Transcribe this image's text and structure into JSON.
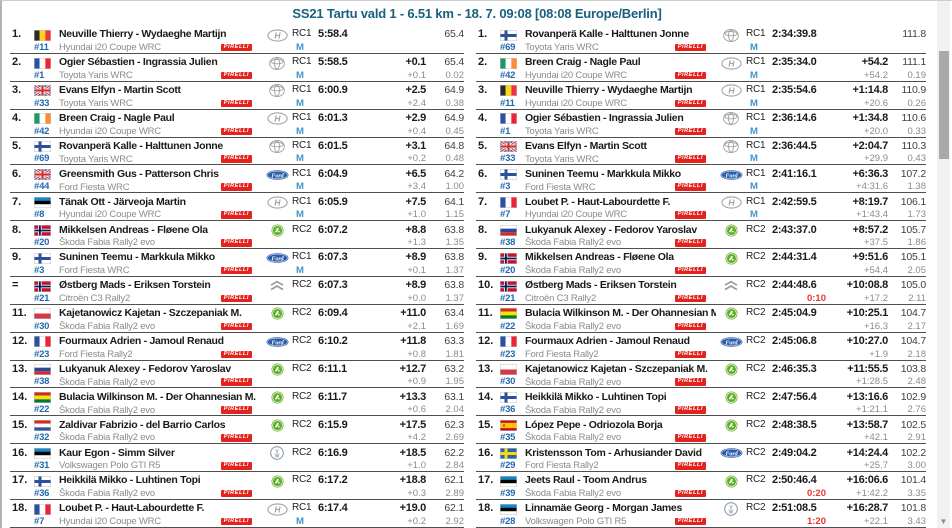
{
  "header": {
    "title": "SS21 Tartu vald 1 - 6.51 km - 18. 7. 09:08 [08:08 Europe/Berlin]"
  },
  "colors": {
    "accent": "#17617f",
    "car_number_blue": "#2268ae",
    "tyre_blue": "#3f93c9",
    "penalty_red": "#e23b2e",
    "pirelli_red": "#e3231c",
    "separator_grey": "#4f4f4f"
  },
  "tyre_brand": "PIRELLI",
  "icons": {
    "scroll_down": "▼"
  },
  "stage_results": [
    {
      "pos": "1.",
      "country": "belgium",
      "crew": "Neuville Thierry - Wydaeghe Martijn",
      "car_no": "#11",
      "car": "Hyundai i20 Coupe WRC",
      "make_icon": "hyundai-logo",
      "class": "RC1",
      "tyre": "M",
      "time": "5:58.4",
      "penalty": "",
      "gap": "",
      "gap_prev": "",
      "speed": "65.4",
      "speed_diff": ""
    },
    {
      "pos": "2.",
      "country": "france",
      "crew": "Ogier Sébastien - Ingrassia Julien",
      "car_no": "#1",
      "car": "Toyota Yaris WRC",
      "make_icon": "toyota-logo",
      "class": "RC1",
      "tyre": "M",
      "time": "5:58.5",
      "penalty": "",
      "gap": "+0.1",
      "gap_prev": "+0.1",
      "speed": "65.4",
      "speed_diff": "0.02"
    },
    {
      "pos": "3.",
      "country": "great-britain",
      "crew": "Evans Elfyn - Martin Scott",
      "car_no": "#33",
      "car": "Toyota Yaris WRC",
      "make_icon": "toyota-logo",
      "class": "RC1",
      "tyre": "M",
      "time": "6:00.9",
      "penalty": "",
      "gap": "+2.5",
      "gap_prev": "+2.4",
      "speed": "64.9",
      "speed_diff": "0.38"
    },
    {
      "pos": "4.",
      "country": "ireland",
      "crew": "Breen Craig - Nagle Paul",
      "car_no": "#42",
      "car": "Hyundai i20 Coupe WRC",
      "make_icon": "hyundai-logo",
      "class": "RC1",
      "tyre": "M",
      "time": "6:01.3",
      "penalty": "",
      "gap": "+2.9",
      "gap_prev": "+0.4",
      "speed": "64.9",
      "speed_diff": "0.45"
    },
    {
      "pos": "5.",
      "country": "finland",
      "crew": "Rovanperä Kalle - Halttunen Jonne",
      "car_no": "#69",
      "car": "Toyota Yaris WRC",
      "make_icon": "toyota-logo",
      "class": "RC1",
      "tyre": "M",
      "time": "6:01.5",
      "penalty": "",
      "gap": "+3.1",
      "gap_prev": "+0.2",
      "speed": "64.8",
      "speed_diff": "0.48"
    },
    {
      "pos": "6.",
      "country": "great-britain",
      "crew": "Greensmith Gus - Patterson Chris",
      "car_no": "#44",
      "car": "Ford Fiesta WRC",
      "make_icon": "ford-logo",
      "class": "RC1",
      "tyre": "M",
      "time": "6:04.9",
      "penalty": "",
      "gap": "+6.5",
      "gap_prev": "+3.4",
      "speed": "64.2",
      "speed_diff": "1.00"
    },
    {
      "pos": "7.",
      "country": "estonia",
      "crew": "Tänak Ott - Järveoja Martin",
      "car_no": "#8",
      "car": "Hyundai i20 Coupe WRC",
      "make_icon": "hyundai-logo",
      "class": "RC1",
      "tyre": "M",
      "time": "6:05.9",
      "penalty": "",
      "gap": "+7.5",
      "gap_prev": "+1.0",
      "speed": "64.1",
      "speed_diff": "1.15"
    },
    {
      "pos": "8.",
      "country": "norway",
      "crew": "Mikkelsen Andreas - Fløene Ola",
      "car_no": "#20",
      "car": "Škoda Fabia Rally2 evo",
      "make_icon": "skoda-logo",
      "class": "RC2",
      "tyre": "",
      "time": "6:07.2",
      "penalty": "",
      "gap": "+8.8",
      "gap_prev": "+1.3",
      "speed": "63.8",
      "speed_diff": "1.35"
    },
    {
      "pos": "9.",
      "country": "finland",
      "crew": "Suninen Teemu - Markkula Mikko",
      "car_no": "#3",
      "car": "Ford Fiesta WRC",
      "make_icon": "ford-logo",
      "class": "RC1",
      "tyre": "M",
      "time": "6:07.3",
      "penalty": "",
      "gap": "+8.9",
      "gap_prev": "+0.1",
      "speed": "63.8",
      "speed_diff": "1.37"
    },
    {
      "pos": "=",
      "country": "norway",
      "crew": "Østberg Mads - Eriksen Torstein",
      "car_no": "#21",
      "car": "Citroën C3 Rally2",
      "make_icon": "citroen-logo",
      "class": "RC2",
      "tyre": "",
      "time": "6:07.3",
      "penalty": "",
      "gap": "+8.9",
      "gap_prev": "+0.0",
      "speed": "63.8",
      "speed_diff": "1.37"
    },
    {
      "pos": "11.",
      "country": "poland",
      "crew": "Kajetanowicz Kajetan - Szczepaniak M.",
      "car_no": "#30",
      "car": "Škoda Fabia Rally2 evo",
      "make_icon": "skoda-logo",
      "class": "RC2",
      "tyre": "",
      "time": "6:09.4",
      "penalty": "",
      "gap": "+11.0",
      "gap_prev": "+2.1",
      "speed": "63.4",
      "speed_diff": "1.69"
    },
    {
      "pos": "12.",
      "country": "france",
      "crew": "Fourmaux Adrien - Jamoul Renaud",
      "car_no": "#23",
      "car": "Ford Fiesta Rally2",
      "make_icon": "ford-logo",
      "class": "RC2",
      "tyre": "",
      "time": "6:10.2",
      "penalty": "",
      "gap": "+11.8",
      "gap_prev": "+0.8",
      "speed": "63.3",
      "speed_diff": "1.81"
    },
    {
      "pos": "13.",
      "country": "russia",
      "crew": "Lukyanuk Alexey - Fedorov Yaroslav",
      "car_no": "#38",
      "car": "Škoda Fabia Rally2 evo",
      "make_icon": "skoda-logo",
      "class": "RC2",
      "tyre": "",
      "time": "6:11.1",
      "penalty": "",
      "gap": "+12.7",
      "gap_prev": "+0.9",
      "speed": "63.2",
      "speed_diff": "1.95"
    },
    {
      "pos": "14.",
      "country": "bolivia",
      "crew": "Bulacia Wilkinson M. - Der Ohannesian M.",
      "car_no": "#22",
      "car": "Škoda Fabia Rally2 evo",
      "make_icon": "skoda-logo",
      "class": "RC2",
      "tyre": "",
      "time": "6:11.7",
      "penalty": "",
      "gap": "+13.3",
      "gap_prev": "+0.6",
      "speed": "63.1",
      "speed_diff": "2.04"
    },
    {
      "pos": "15.",
      "country": "paraguay",
      "crew": "Zaldivar Fabrizio - del Barrio Carlos",
      "car_no": "#32",
      "car": "Škoda Fabia Rally2 evo",
      "make_icon": "skoda-logo",
      "class": "RC2",
      "tyre": "",
      "time": "6:15.9",
      "penalty": "",
      "gap": "+17.5",
      "gap_prev": "+4.2",
      "speed": "62.3",
      "speed_diff": "2.69"
    },
    {
      "pos": "16.",
      "country": "estonia",
      "crew": "Kaur Egon - Simm Silver",
      "car_no": "#31",
      "car": "Volkswagen Polo GTI R5",
      "make_icon": "volkswagen-logo",
      "class": "RC2",
      "tyre": "",
      "time": "6:16.9",
      "penalty": "",
      "gap": "+18.5",
      "gap_prev": "+1.0",
      "speed": "62.2",
      "speed_diff": "2.84"
    },
    {
      "pos": "17.",
      "country": "finland",
      "crew": "Heikkilä Mikko - Luhtinen Topi",
      "car_no": "#36",
      "car": "Škoda Fabia Rally2 evo",
      "make_icon": "skoda-logo",
      "class": "RC2",
      "tyre": "",
      "time": "6:17.2",
      "penalty": "",
      "gap": "+18.8",
      "gap_prev": "+0.3",
      "speed": "62.1",
      "speed_diff": "2.89"
    },
    {
      "pos": "18.",
      "country": "france",
      "crew": "Loubet P. - Haut-Labourdette F.",
      "car_no": "#7",
      "car": "Hyundai i20 Coupe WRC",
      "make_icon": "hyundai-logo",
      "class": "RC1",
      "tyre": "M",
      "time": "6:17.4",
      "penalty": "",
      "gap": "+19.0",
      "gap_prev": "+0.2",
      "speed": "62.1",
      "speed_diff": "2.92"
    }
  ],
  "overall_results": [
    {
      "pos": "1.",
      "country": "finland",
      "crew": "Rovanperä Kalle - Halttunen Jonne",
      "car_no": "#69",
      "car": "Toyota Yaris WRC",
      "make_icon": "toyota-logo",
      "class": "RC1",
      "tyre": "M",
      "time": "2:34:39.8",
      "penalty": "",
      "gap": "",
      "gap_prev": "",
      "speed": "111.8",
      "speed_diff": ""
    },
    {
      "pos": "2.",
      "country": "ireland",
      "crew": "Breen Craig - Nagle Paul",
      "car_no": "#42",
      "car": "Hyundai i20 Coupe WRC",
      "make_icon": "hyundai-logo",
      "class": "RC1",
      "tyre": "M",
      "time": "2:35:34.0",
      "penalty": "",
      "gap": "+54.2",
      "gap_prev": "+54.2",
      "speed": "111.1",
      "speed_diff": "0.19"
    },
    {
      "pos": "3.",
      "country": "belgium",
      "crew": "Neuville Thierry - Wydaeghe Martijn",
      "car_no": "#11",
      "car": "Hyundai i20 Coupe WRC",
      "make_icon": "hyundai-logo",
      "class": "RC1",
      "tyre": "M",
      "time": "2:35:54.6",
      "penalty": "",
      "gap": "+1:14.8",
      "gap_prev": "+20.6",
      "speed": "110.9",
      "speed_diff": "0.26"
    },
    {
      "pos": "4.",
      "country": "france",
      "crew": "Ogier Sébastien - Ingrassia Julien",
      "car_no": "#1",
      "car": "Toyota Yaris WRC",
      "make_icon": "toyota-logo",
      "class": "RC1",
      "tyre": "M",
      "time": "2:36:14.6",
      "penalty": "",
      "gap": "+1:34.8",
      "gap_prev": "+20.0",
      "speed": "110.6",
      "speed_diff": "0.33"
    },
    {
      "pos": "5.",
      "country": "great-britain",
      "crew": "Evans Elfyn - Martin Scott",
      "car_no": "#33",
      "car": "Toyota Yaris WRC",
      "make_icon": "toyota-logo",
      "class": "RC1",
      "tyre": "M",
      "time": "2:36:44.5",
      "penalty": "",
      "gap": "+2:04.7",
      "gap_prev": "+29.9",
      "speed": "110.3",
      "speed_diff": "0.43"
    },
    {
      "pos": "6.",
      "country": "finland",
      "crew": "Suninen Teemu - Markkula Mikko",
      "car_no": "#3",
      "car": "Ford Fiesta WRC",
      "make_icon": "ford-logo",
      "class": "RC1",
      "tyre": "M",
      "time": "2:41:16.1",
      "penalty": "",
      "gap": "+6:36.3",
      "gap_prev": "+4:31.6",
      "speed": "107.2",
      "speed_diff": "1.38"
    },
    {
      "pos": "7.",
      "country": "france",
      "crew": "Loubet P. - Haut-Labourdette F.",
      "car_no": "#7",
      "car": "Hyundai i20 Coupe WRC",
      "make_icon": "hyundai-logo",
      "class": "RC1",
      "tyre": "M",
      "time": "2:42:59.5",
      "penalty": "",
      "gap": "+8:19.7",
      "gap_prev": "+1:43.4",
      "speed": "106.1",
      "speed_diff": "1.73"
    },
    {
      "pos": "8.",
      "country": "russia",
      "crew": "Lukyanuk Alexey - Fedorov Yaroslav",
      "car_no": "#38",
      "car": "Škoda Fabia Rally2 evo",
      "make_icon": "skoda-logo",
      "class": "RC2",
      "tyre": "",
      "time": "2:43:37.0",
      "penalty": "",
      "gap": "+8:57.2",
      "gap_prev": "+37.5",
      "speed": "105.7",
      "speed_diff": "1.86"
    },
    {
      "pos": "9.",
      "country": "norway",
      "crew": "Mikkelsen Andreas - Fløene Ola",
      "car_no": "#20",
      "car": "Škoda Fabia Rally2 evo",
      "make_icon": "skoda-logo",
      "class": "RC2",
      "tyre": "",
      "time": "2:44:31.4",
      "penalty": "",
      "gap": "+9:51.6",
      "gap_prev": "+54.4",
      "speed": "105.1",
      "speed_diff": "2.05"
    },
    {
      "pos": "10.",
      "country": "norway",
      "crew": "Østberg Mads - Eriksen Torstein",
      "car_no": "#21",
      "car": "Citroën C3 Rally2",
      "make_icon": "citroen-logo",
      "class": "RC2",
      "tyre": "",
      "time": "2:44:48.6",
      "penalty": "0:10",
      "gap": "+10:08.8",
      "gap_prev": "+17.2",
      "speed": "105.0",
      "speed_diff": "2.11"
    },
    {
      "pos": "11.",
      "country": "bolivia",
      "crew": "Bulacia Wilkinson M. - Der Ohannesian M.",
      "car_no": "#22",
      "car": "Škoda Fabia Rally2 evo",
      "make_icon": "skoda-logo",
      "class": "RC2",
      "tyre": "",
      "time": "2:45:04.9",
      "penalty": "",
      "gap": "+10:25.1",
      "gap_prev": "+16.3",
      "speed": "104.7",
      "speed_diff": "2.17"
    },
    {
      "pos": "12.",
      "country": "france",
      "crew": "Fourmaux Adrien - Jamoul Renaud",
      "car_no": "#23",
      "car": "Ford Fiesta Rally2",
      "make_icon": "ford-logo",
      "class": "RC2",
      "tyre": "",
      "time": "2:45:06.8",
      "penalty": "",
      "gap": "+10:27.0",
      "gap_prev": "+1.9",
      "speed": "104.7",
      "speed_diff": "2.18"
    },
    {
      "pos": "13.",
      "country": "poland",
      "crew": "Kajetanowicz Kajetan - Szczepaniak M.",
      "car_no": "#30",
      "car": "Škoda Fabia Rally2 evo",
      "make_icon": "skoda-logo",
      "class": "RC2",
      "tyre": "",
      "time": "2:46:35.3",
      "penalty": "",
      "gap": "+11:55.5",
      "gap_prev": "+1:28.5",
      "speed": "103.8",
      "speed_diff": "2.48"
    },
    {
      "pos": "14.",
      "country": "finland",
      "crew": "Heikkilä Mikko - Luhtinen Topi",
      "car_no": "#36",
      "car": "Škoda Fabia Rally2 evo",
      "make_icon": "skoda-logo",
      "class": "RC2",
      "tyre": "",
      "time": "2:47:56.4",
      "penalty": "",
      "gap": "+13:16.6",
      "gap_prev": "+1:21.1",
      "speed": "102.9",
      "speed_diff": "2.76"
    },
    {
      "pos": "15.",
      "country": "spain",
      "crew": "López Pepe - Odriozola Borja",
      "car_no": "#35",
      "car": "Škoda Fabia Rally2 evo",
      "make_icon": "skoda-logo",
      "class": "RC2",
      "tyre": "",
      "time": "2:48:38.5",
      "penalty": "",
      "gap": "+13:58.7",
      "gap_prev": "+42.1",
      "speed": "102.5",
      "speed_diff": "2.91"
    },
    {
      "pos": "16.",
      "country": "sweden",
      "crew": "Kristensson Tom - Arhusiander David",
      "car_no": "#29",
      "car": "Ford Fiesta Rally2",
      "make_icon": "ford-logo",
      "class": "RC2",
      "tyre": "",
      "time": "2:49:04.2",
      "penalty": "",
      "gap": "+14:24.4",
      "gap_prev": "+25.7",
      "speed": "102.2",
      "speed_diff": "3.00"
    },
    {
      "pos": "17.",
      "country": "estonia",
      "crew": "Jeets Raul - Toom Andrus",
      "car_no": "#39",
      "car": "Škoda Fabia Rally2 evo",
      "make_icon": "skoda-logo",
      "class": "RC2",
      "tyre": "",
      "time": "2:50:46.4",
      "penalty": "0:20",
      "gap": "+16:06.6",
      "gap_prev": "+1:42.2",
      "speed": "101.4",
      "speed_diff": "3.35"
    },
    {
      "pos": "18.",
      "country": "estonia",
      "crew": "Linnamäe Georg - Morgan James",
      "car_no": "#28",
      "car": "Volkswagen Polo GTI R5",
      "make_icon": "volkswagen-logo",
      "class": "RC2",
      "tyre": "",
      "time": "2:51:08.5",
      "penalty": "1:20",
      "gap": "+16:28.7",
      "gap_prev": "+22.1",
      "speed": "101.8",
      "speed_diff": "3.43"
    }
  ]
}
